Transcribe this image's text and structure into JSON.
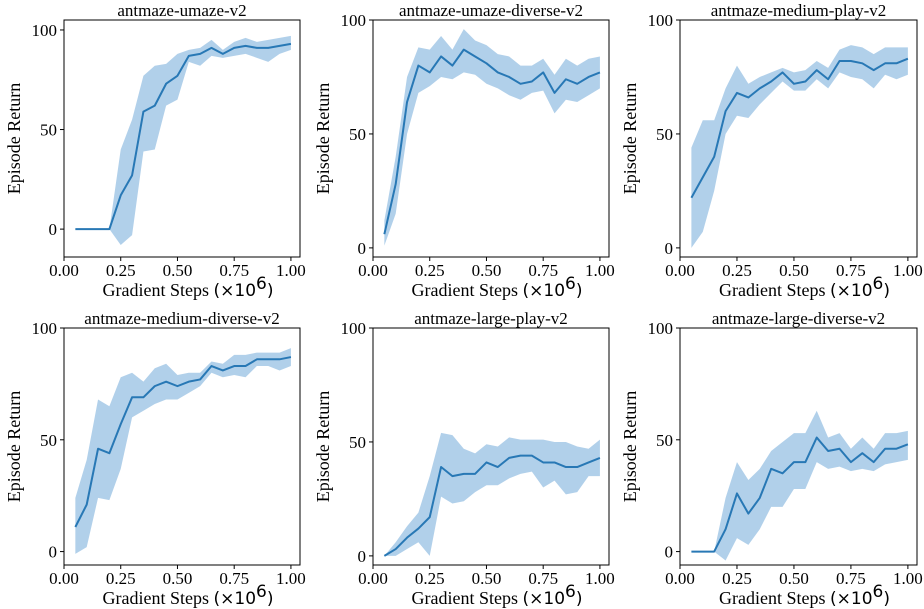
{
  "chart_data": [
    {
      "type": "line",
      "title": "antmaze-umaze-v2",
      "xlabel": "Gradient Steps",
      "xlabel_multiplier": "(×10",
      "xlabel_exponent": "6",
      "xlabel_close": ")",
      "ylabel": "Episode Return",
      "xlim": [
        0.0,
        1.04
      ],
      "ylim": [
        -14,
        105
      ],
      "xticks": [
        "0.00",
        "0.25",
        "0.50",
        "0.75",
        "1.00"
      ],
      "xtick_values": [
        0,
        0.25,
        0.5,
        0.75,
        1.0
      ],
      "yticks": [
        "0",
        "50",
        "100"
      ],
      "ytick_values": [
        0,
        50,
        100
      ],
      "grid": false,
      "color": "#2878b5",
      "band_color": "#a9cbe8",
      "x": [
        0.05,
        0.1,
        0.15,
        0.2,
        0.25,
        0.3,
        0.35,
        0.4,
        0.45,
        0.5,
        0.55,
        0.6,
        0.65,
        0.7,
        0.75,
        0.8,
        0.85,
        0.9,
        0.95,
        1.0
      ],
      "mean": [
        0,
        0,
        0,
        0,
        17,
        27,
        59,
        62,
        73,
        77,
        87,
        88,
        91,
        88,
        91,
        92,
        91,
        91,
        92,
        93
      ],
      "lower": [
        0,
        0,
        0,
        0,
        -8,
        -3,
        39,
        40,
        62,
        65,
        84,
        82,
        87,
        86,
        87,
        88,
        86,
        84,
        88,
        90
      ],
      "upper": [
        0,
        0,
        0,
        0,
        40,
        55,
        77,
        82,
        83,
        88,
        90,
        91,
        95,
        90,
        94,
        96,
        94,
        95,
        96,
        97
      ]
    },
    {
      "type": "line",
      "title": "antmaze-umaze-diverse-v2",
      "xlabel": "Gradient Steps",
      "xlabel_multiplier": "(×10",
      "xlabel_exponent": "6",
      "xlabel_close": ")",
      "ylabel": "Episode Return",
      "xlim": [
        0.0,
        1.04
      ],
      "ylim": [
        -4,
        100
      ],
      "xticks": [
        "0.00",
        "0.25",
        "0.50",
        "0.75",
        "1.00"
      ],
      "xtick_values": [
        0,
        0.25,
        0.5,
        0.75,
        1.0
      ],
      "yticks": [
        "0",
        "50",
        "100"
      ],
      "ytick_values": [
        0,
        50,
        100
      ],
      "grid": false,
      "color": "#2878b5",
      "band_color": "#a9cbe8",
      "x": [
        0.05,
        0.1,
        0.15,
        0.2,
        0.25,
        0.3,
        0.35,
        0.4,
        0.45,
        0.5,
        0.55,
        0.6,
        0.65,
        0.7,
        0.75,
        0.8,
        0.85,
        0.9,
        0.95,
        1.0
      ],
      "mean": [
        6,
        28,
        64,
        80,
        77,
        84,
        80,
        87,
        84,
        81,
        77,
        75,
        72,
        73,
        77,
        68,
        74,
        72,
        75,
        77
      ],
      "lower": [
        1,
        15,
        50,
        68,
        71,
        75,
        74,
        77,
        76,
        72,
        70,
        67,
        65,
        68,
        69,
        59,
        65,
        64,
        67,
        70
      ],
      "upper": [
        12,
        40,
        75,
        88,
        87,
        93,
        87,
        96,
        91,
        89,
        85,
        84,
        80,
        80,
        83,
        76,
        83,
        80,
        83,
        84
      ]
    },
    {
      "type": "line",
      "title": "antmaze-medium-play-v2",
      "xlabel": "Gradient Steps",
      "xlabel_multiplier": "(×10",
      "xlabel_exponent": "6",
      "xlabel_close": ")",
      "ylabel": "Episode Return",
      "xlim": [
        0.0,
        1.04
      ],
      "ylim": [
        -4,
        100
      ],
      "xticks": [
        "0.00",
        "0.25",
        "0.50",
        "0.75",
        "1.00"
      ],
      "xtick_values": [
        0,
        0.25,
        0.5,
        0.75,
        1.0
      ],
      "yticks": [
        "0",
        "50",
        "100"
      ],
      "ytick_values": [
        0,
        50,
        100
      ],
      "grid": false,
      "color": "#2878b5",
      "band_color": "#a9cbe8",
      "x": [
        0.05,
        0.1,
        0.15,
        0.2,
        0.25,
        0.3,
        0.35,
        0.4,
        0.45,
        0.5,
        0.55,
        0.6,
        0.65,
        0.7,
        0.75,
        0.8,
        0.85,
        0.9,
        0.95,
        1.0
      ],
      "mean": [
        22,
        31,
        40,
        60,
        68,
        66,
        70,
        73,
        77,
        72,
        73,
        78,
        74,
        82,
        82,
        81,
        78,
        81,
        81,
        83
      ],
      "lower": [
        0,
        7,
        25,
        50,
        58,
        57,
        63,
        68,
        73,
        69,
        69,
        74,
        70,
        77,
        75,
        74,
        70,
        76,
        74,
        76
      ],
      "upper": [
        44,
        56,
        56,
        70,
        80,
        72,
        75,
        77,
        79,
        77,
        78,
        82,
        79,
        87,
        89,
        88,
        85,
        88,
        88,
        88
      ]
    },
    {
      "type": "line",
      "title": "antmaze-medium-diverse-v2",
      "xlabel": "Gradient Steps",
      "xlabel_multiplier": "(×10",
      "xlabel_exponent": "6",
      "xlabel_close": ")",
      "ylabel": "Episode Return",
      "xlim": [
        0.0,
        1.04
      ],
      "ylim": [
        -6,
        100
      ],
      "xticks": [
        "0.00",
        "0.25",
        "0.50",
        "0.75",
        "1.00"
      ],
      "xtick_values": [
        0,
        0.25,
        0.5,
        0.75,
        1.0
      ],
      "yticks": [
        "0",
        "50",
        "100"
      ],
      "ytick_values": [
        0,
        50,
        100
      ],
      "grid": false,
      "color": "#2878b5",
      "band_color": "#a9cbe8",
      "x": [
        0.05,
        0.1,
        0.15,
        0.2,
        0.25,
        0.3,
        0.35,
        0.4,
        0.45,
        0.5,
        0.55,
        0.6,
        0.65,
        0.7,
        0.75,
        0.8,
        0.85,
        0.9,
        0.95,
        1.0
      ],
      "mean": [
        11,
        21,
        46,
        44,
        57,
        69,
        69,
        74,
        76,
        74,
        76,
        77,
        83,
        81,
        83,
        83,
        86,
        86,
        86,
        87
      ],
      "lower": [
        -1,
        2,
        24,
        23,
        37,
        60,
        63,
        66,
        68,
        68,
        71,
        74,
        80,
        78,
        79,
        78,
        83,
        83,
        81,
        83
      ],
      "upper": [
        24,
        41,
        68,
        65,
        78,
        80,
        76,
        82,
        84,
        79,
        80,
        80,
        85,
        84,
        88,
        88,
        89,
        89,
        89,
        91
      ]
    },
    {
      "type": "line",
      "title": "antmaze-large-play-v2",
      "xlabel": "Gradient Steps",
      "xlabel_multiplier": "(×10",
      "xlabel_exponent": "6",
      "xlabel_close": ")",
      "ylabel": "Episode Return",
      "xlim": [
        0.0,
        1.04
      ],
      "ylim": [
        -4,
        100
      ],
      "xticks": [
        "0.00",
        "0.25",
        "0.50",
        "0.75",
        "1.00"
      ],
      "xtick_values": [
        0,
        0.25,
        0.5,
        0.75,
        1.0
      ],
      "yticks": [
        "0",
        "50",
        "100"
      ],
      "ytick_values": [
        0,
        50,
        100
      ],
      "grid": false,
      "color": "#2878b5",
      "band_color": "#a9cbe8",
      "x": [
        0.05,
        0.1,
        0.15,
        0.2,
        0.25,
        0.3,
        0.35,
        0.4,
        0.45,
        0.5,
        0.55,
        0.6,
        0.65,
        0.7,
        0.75,
        0.8,
        0.85,
        0.9,
        0.95,
        1.0
      ],
      "mean": [
        0,
        3,
        8,
        12,
        17,
        39,
        35,
        36,
        36,
        41,
        39,
        43,
        44,
        44,
        41,
        41,
        39,
        39,
        41,
        43
      ],
      "lower": [
        0,
        0,
        3,
        6,
        0,
        26,
        23,
        24,
        28,
        31,
        31,
        34,
        36,
        37,
        30,
        33,
        27,
        28,
        35,
        35
      ],
      "upper": [
        0,
        6,
        13,
        19,
        35,
        54,
        53,
        47,
        45,
        49,
        48,
        52,
        51,
        51,
        51,
        50,
        50,
        48,
        47,
        51
      ]
    },
    {
      "type": "line",
      "title": "antmaze-large-diverse-v2",
      "xlabel": "Gradient Steps",
      "xlabel_multiplier": "(×10",
      "xlabel_exponent": "6",
      "xlabel_close": ")",
      "ylabel": "Episode Return",
      "xlim": [
        0.0,
        1.04
      ],
      "ylim": [
        -6,
        100
      ],
      "xticks": [
        "0.00",
        "0.25",
        "0.50",
        "0.75",
        "1.00"
      ],
      "xtick_values": [
        0,
        0.25,
        0.5,
        0.75,
        1.0
      ],
      "yticks": [
        "0",
        "50",
        "100"
      ],
      "ytick_values": [
        0,
        50,
        100
      ],
      "grid": false,
      "color": "#2878b5",
      "band_color": "#a9cbe8",
      "x": [
        0.05,
        0.1,
        0.15,
        0.2,
        0.25,
        0.3,
        0.35,
        0.4,
        0.45,
        0.5,
        0.55,
        0.6,
        0.65,
        0.7,
        0.75,
        0.8,
        0.85,
        0.9,
        0.95,
        1.0
      ],
      "mean": [
        0,
        0,
        0,
        10,
        26,
        17,
        24,
        37,
        35,
        40,
        40,
        51,
        45,
        46,
        40,
        44,
        40,
        46,
        46,
        48
      ],
      "lower": [
        0,
        0,
        0,
        -4,
        6,
        3,
        10,
        20,
        20,
        28,
        28,
        40,
        37,
        38,
        36,
        37,
        36,
        39,
        40,
        41
      ],
      "upper": [
        0,
        0,
        0,
        24,
        40,
        32,
        37,
        45,
        49,
        53,
        53,
        63,
        51,
        53,
        46,
        51,
        46,
        53,
        53,
        54
      ]
    }
  ]
}
